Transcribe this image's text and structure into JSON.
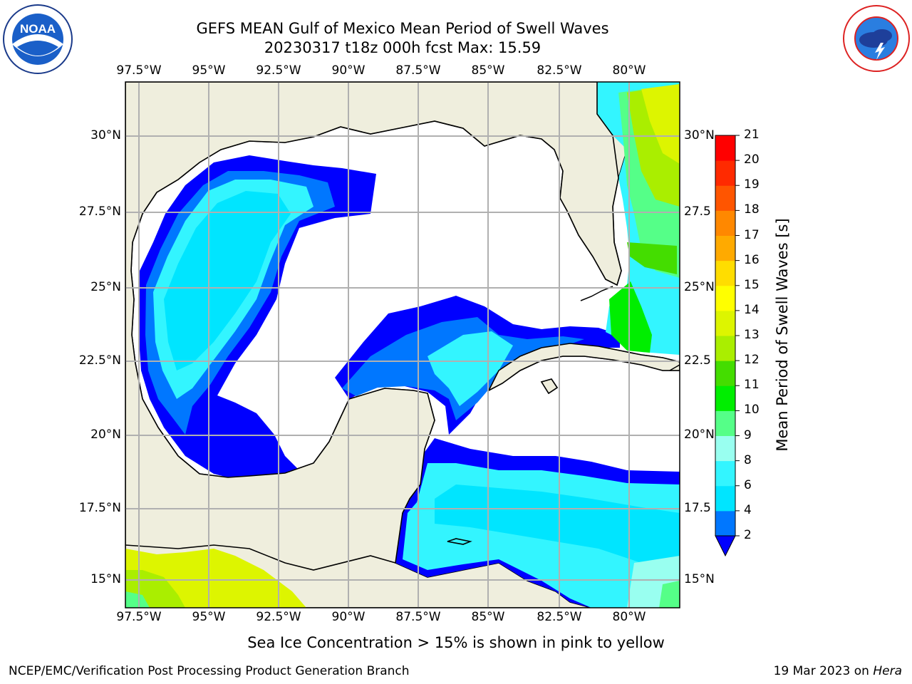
{
  "title_line1": "GEFS MEAN Gulf of Mexico Mean Period of Swell Waves",
  "title_line2": "20230317 t18z 000h fcst   Max: 15.59",
  "lon_ticks": [
    "97.5°W",
    "95°W",
    "92.5°W",
    "90°W",
    "87.5°W",
    "85°W",
    "82.5°W",
    "80°W"
  ],
  "lat_ticks_left": [
    "30°N",
    "27.5°N",
    "25°N",
    "22.5°N",
    "20°N",
    "17.5°N",
    "15°N"
  ],
  "lat_ticks_right": [
    "30°N",
    "27.5",
    "25°N",
    "22.5",
    "20°N",
    "17.5",
    "15°N"
  ],
  "colorbar": {
    "label": "Mean Period of Swell Waves [s]",
    "ticks": [
      "2",
      "4",
      "6",
      "8",
      "9",
      "10",
      "11",
      "12",
      "13",
      "14",
      "15",
      "16",
      "17",
      "18",
      "19",
      "20",
      "21"
    ],
    "colors": [
      "#0000ff",
      "#0077ff",
      "#00e5ff",
      "#33f5ff",
      "#99fff0",
      "#55ff88",
      "#00ee00",
      "#44dd00",
      "#aaee00",
      "#ddf500",
      "#ffff00",
      "#ffdd00",
      "#ffaa00",
      "#ff8800",
      "#ff5500",
      "#ff2a00",
      "#ff0000"
    ]
  },
  "note": "Sea Ice Concentration > 15% is shown in pink to yellow",
  "footer_left": "NCEP/EMC/Verification Post Processing Product Generation Branch",
  "footer_date": "19 Mar 2023 on ",
  "footer_machine": "Hera",
  "logos": {
    "left": "noaa-logo",
    "right": "nws-logo"
  },
  "colors": {
    "land": "#efeedd",
    "grid": "#b0b0b0"
  }
}
